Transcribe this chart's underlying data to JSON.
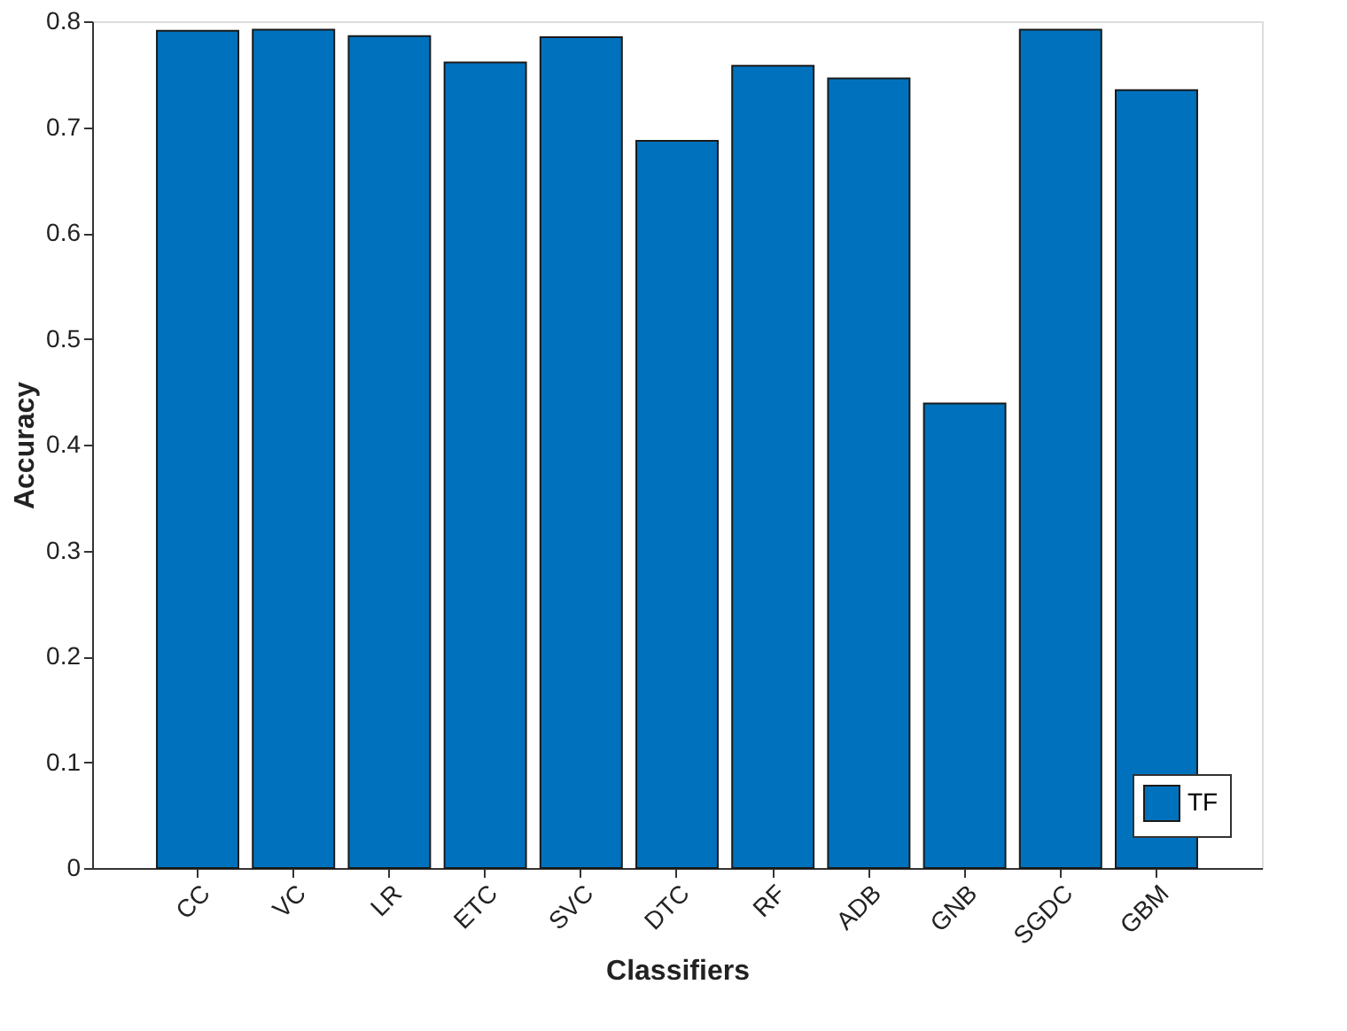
{
  "chart_data": {
    "type": "bar",
    "xlabel": "Classifiers",
    "ylabel": "Accuracy",
    "categories": [
      "CC",
      "VC",
      "LR",
      "ETC",
      "SVC",
      "DTC",
      "RF",
      "ADB",
      "GNB",
      "SGDC",
      "GBM"
    ],
    "series": [
      {
        "name": "TF",
        "color": "#0072bd",
        "values": [
          0.791,
          0.792,
          0.786,
          0.761,
          0.785,
          0.687,
          0.758,
          0.746,
          0.439,
          0.792,
          0.735
        ]
      }
    ],
    "ylim": [
      0,
      0.8
    ],
    "yticks": [
      0,
      0.1,
      0.2,
      0.3,
      0.4,
      0.5,
      0.6,
      0.7,
      0.8
    ],
    "grid": false,
    "legend": "bottom right"
  }
}
